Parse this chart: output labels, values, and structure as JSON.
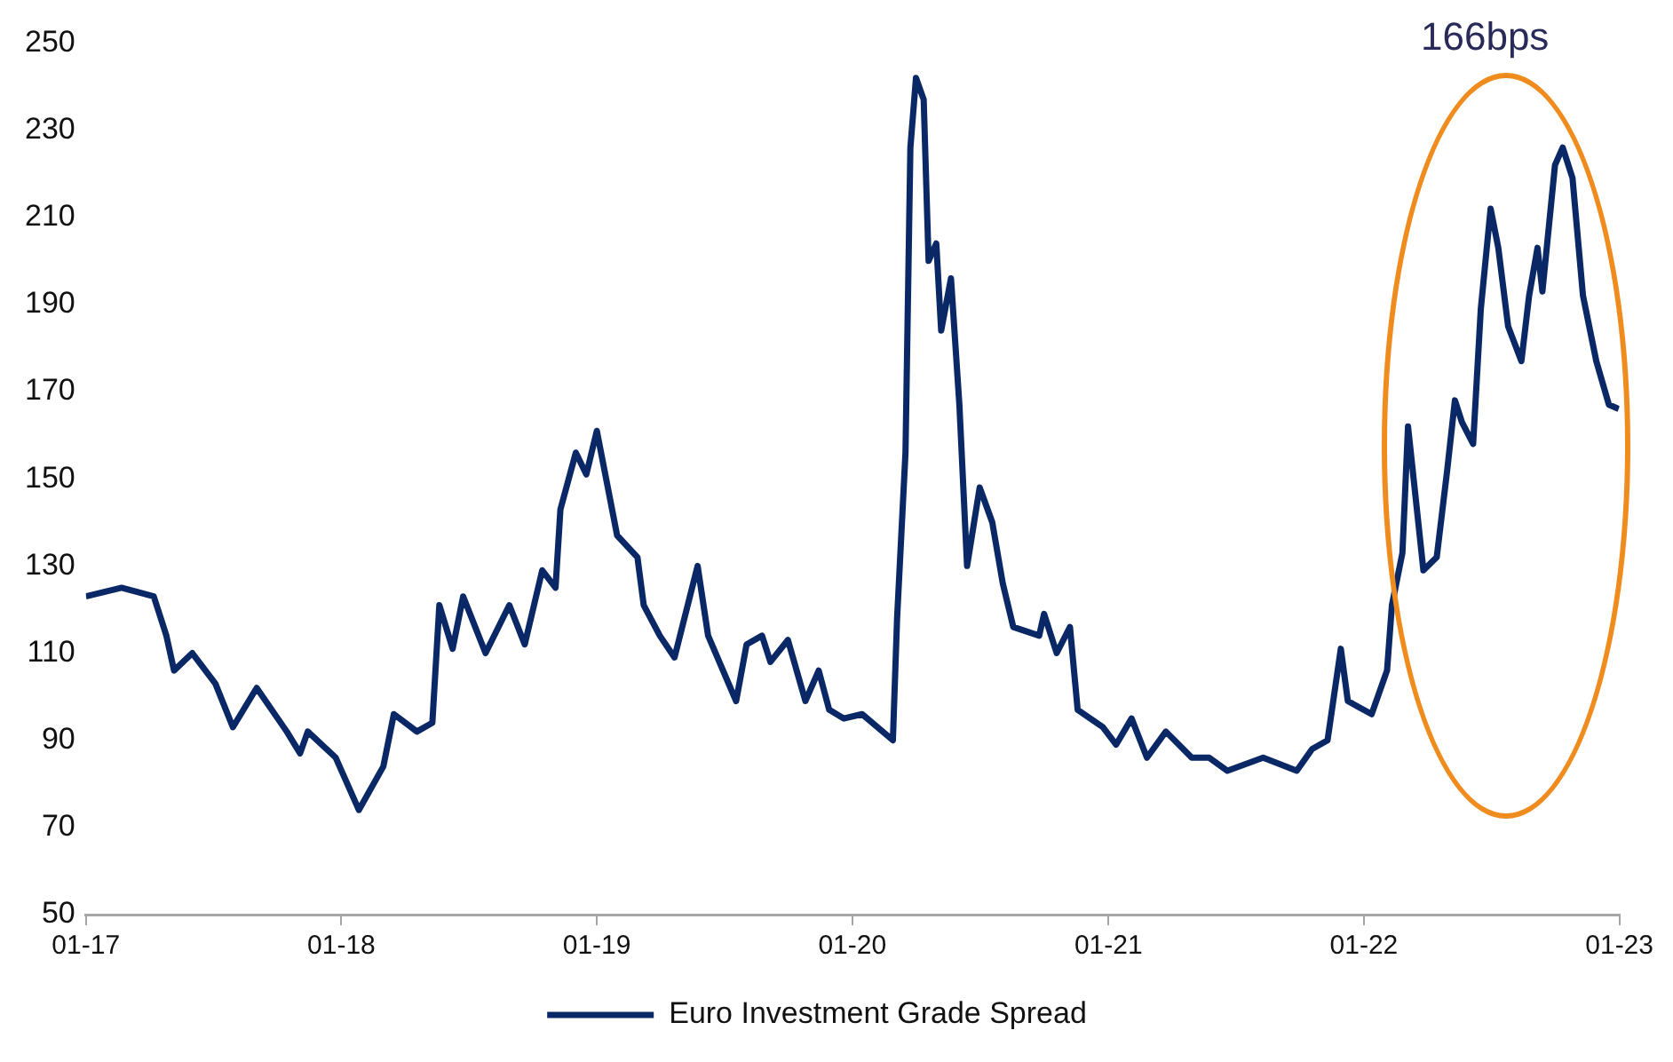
{
  "chart_data": {
    "type": "line",
    "x": [
      "2017-01-01",
      "2017-02-21",
      "2017-04-08",
      "2017-04-26",
      "2017-05-07",
      "2017-06-02",
      "2017-07-05",
      "2017-07-30",
      "2017-09-02",
      "2017-10-15",
      "2017-11-03",
      "2017-11-14",
      "2017-12-24",
      "2018-01-26",
      "2018-03-02",
      "2018-03-17",
      "2018-04-19",
      "2018-05-11",
      "2018-05-21",
      "2018-06-09",
      "2018-06-24",
      "2018-07-26",
      "2018-08-29",
      "2018-09-20",
      "2018-10-15",
      "2018-11-03",
      "2018-11-10",
      "2018-12-02",
      "2018-12-17",
      "2019-01-01",
      "2019-01-30",
      "2019-02-28",
      "2019-03-09",
      "2019-04-01",
      "2019-04-22",
      "2019-05-25",
      "2019-06-09",
      "2019-07-19",
      "2019-08-03",
      "2019-08-25",
      "2019-09-06",
      "2019-10-01",
      "2019-10-26",
      "2019-11-14",
      "2019-11-29",
      "2019-12-20",
      "2020-01-15",
      "2020-02-28",
      "2020-03-05",
      "2020-03-17",
      "2020-03-24",
      "2020-04-01",
      "2020-04-12",
      "2020-04-19",
      "2020-04-30",
      "2020-05-07",
      "2020-05-21",
      "2020-06-02",
      "2020-06-13",
      "2020-07-01",
      "2020-07-19",
      "2020-08-03",
      "2020-08-18",
      "2020-09-24",
      "2020-10-01",
      "2020-10-19",
      "2020-11-07",
      "2020-11-18",
      "2020-12-24",
      "2021-01-12",
      "2021-02-03",
      "2021-02-25",
      "2021-03-24",
      "2021-04-30",
      "2021-05-25",
      "2021-06-20",
      "2021-08-10",
      "2021-09-27",
      "2021-10-19",
      "2021-11-10",
      "2021-11-29",
      "2021-12-09",
      "2022-01-12",
      "2022-02-03",
      "2022-02-10",
      "2022-02-25",
      "2022-03-05",
      "2022-03-27",
      "2022-04-15",
      "2022-04-30",
      "2022-05-11",
      "2022-05-21",
      "2022-06-06",
      "2022-06-17",
      "2022-07-01",
      "2022-07-12",
      "2022-07-26",
      "2022-08-14",
      "2022-08-25",
      "2022-09-06",
      "2022-09-13",
      "2022-10-01",
      "2022-10-12",
      "2022-10-26",
      "2022-11-10",
      "2022-11-29",
      "2022-12-17",
      "2022-12-31"
    ],
    "series": [
      {
        "name": "Euro Investment Grade Spread",
        "color": "#0b2866",
        "values": [
          123,
          125,
          123,
          114,
          106,
          110,
          103,
          93,
          102,
          92,
          87,
          92,
          86,
          74,
          84,
          96,
          92,
          94,
          121,
          111,
          123,
          110,
          121,
          112,
          129,
          125,
          143,
          156,
          151,
          161,
          137,
          132,
          121,
          114,
          109,
          130,
          114,
          99,
          112,
          114,
          108,
          113,
          99,
          106,
          97,
          95,
          96,
          90,
          118,
          156,
          226,
          242,
          237,
          200,
          204,
          184,
          196,
          167,
          130,
          148,
          140,
          126,
          116,
          114,
          119,
          110,
          116,
          97,
          93,
          89,
          95,
          86,
          92,
          86,
          86,
          83,
          86,
          83,
          88,
          90,
          111,
          99,
          96,
          106,
          121,
          133,
          162,
          129,
          132,
          152,
          168,
          163,
          158,
          189,
          212,
          203,
          185,
          177,
          192,
          203,
          193,
          222,
          226,
          219,
          192,
          177,
          167,
          166
        ]
      }
    ],
    "xlim": [
      "2017-01-01",
      "2023-01-01"
    ],
    "xticks": [
      {
        "value": "2017-01-01",
        "label": "01-17"
      },
      {
        "value": "2018-01-01",
        "label": "01-18"
      },
      {
        "value": "2019-01-01",
        "label": "01-19"
      },
      {
        "value": "2020-01-01",
        "label": "01-20"
      },
      {
        "value": "2021-01-01",
        "label": "01-21"
      },
      {
        "value": "2022-01-01",
        "label": "01-22"
      },
      {
        "value": "2023-01-01",
        "label": "01-23"
      }
    ],
    "ylim": [
      50,
      250
    ],
    "yticks": [
      50,
      70,
      90,
      110,
      130,
      150,
      170,
      190,
      210,
      230,
      250
    ],
    "annotations": [
      "166bps"
    ],
    "grid": false,
    "legend": "bottom",
    "marker": "none",
    "line_style": "solid"
  }
}
